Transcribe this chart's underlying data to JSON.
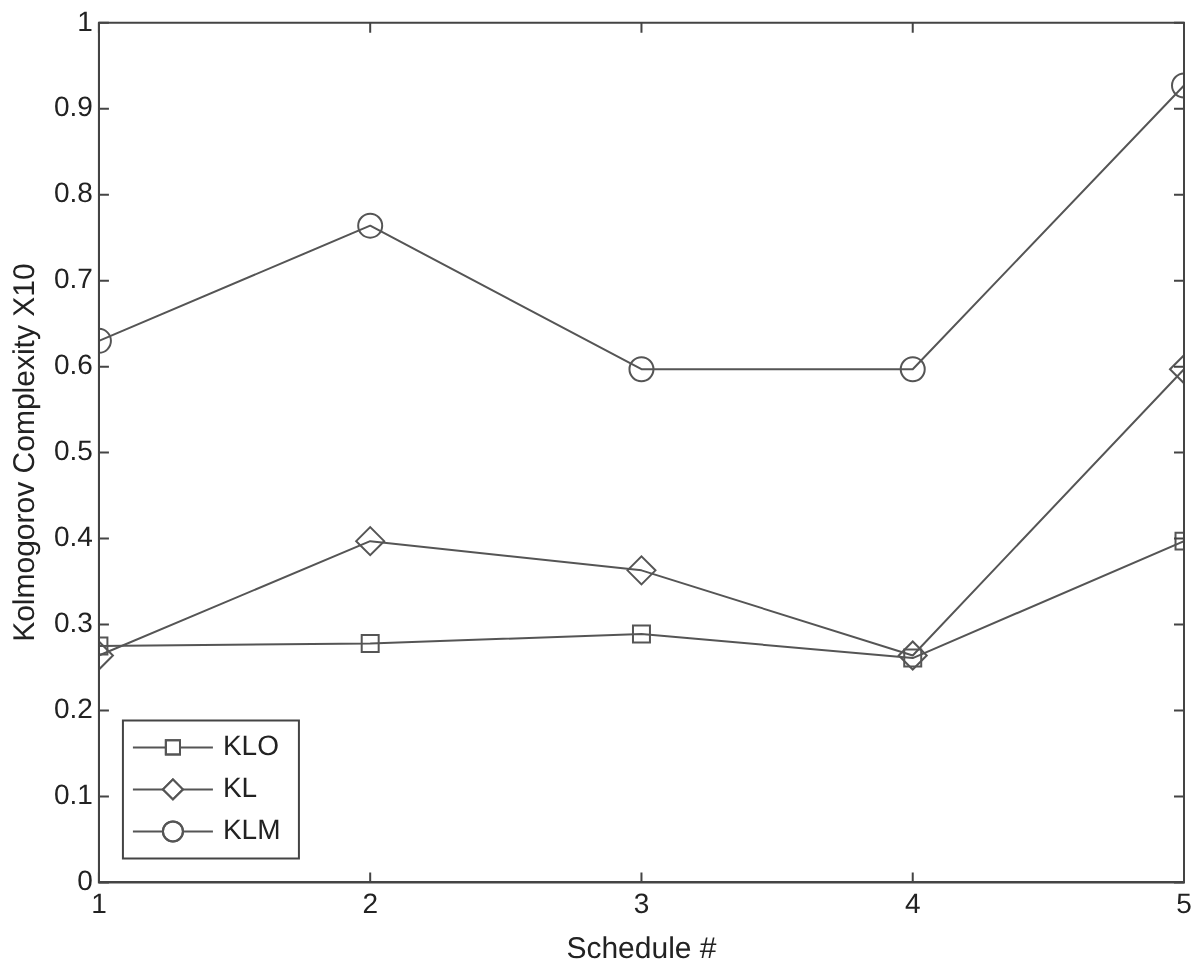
{
  "chart_data": {
    "type": "line",
    "xlabel": "Schedule #",
    "ylabel": "Kolmogorov Complexity X10",
    "x": [
      1,
      2,
      3,
      4,
      5
    ],
    "xlim": [
      1,
      5
    ],
    "xticks": [
      1,
      2,
      3,
      4,
      5
    ],
    "ylim": [
      0,
      1
    ],
    "yticks": [
      0,
      0.1,
      0.2,
      0.3,
      0.4,
      0.5,
      0.6,
      0.7,
      0.8,
      0.9,
      1
    ],
    "legend": "bottom left",
    "grid": false,
    "line_style": "solid",
    "series": [
      {
        "name": "KLO",
        "color": "#555555",
        "marker": "square",
        "values": [
          0.275,
          0.278,
          0.289,
          0.261,
          0.397
        ]
      },
      {
        "name": "KL",
        "color": "#555555",
        "marker": "diamond",
        "values": [
          0.264,
          0.397,
          0.363,
          0.264,
          0.597
        ]
      },
      {
        "name": "KLM",
        "color": "#555555",
        "marker": "circle",
        "values": [
          0.63,
          0.764,
          0.597,
          0.597,
          0.927
        ]
      }
    ]
  }
}
